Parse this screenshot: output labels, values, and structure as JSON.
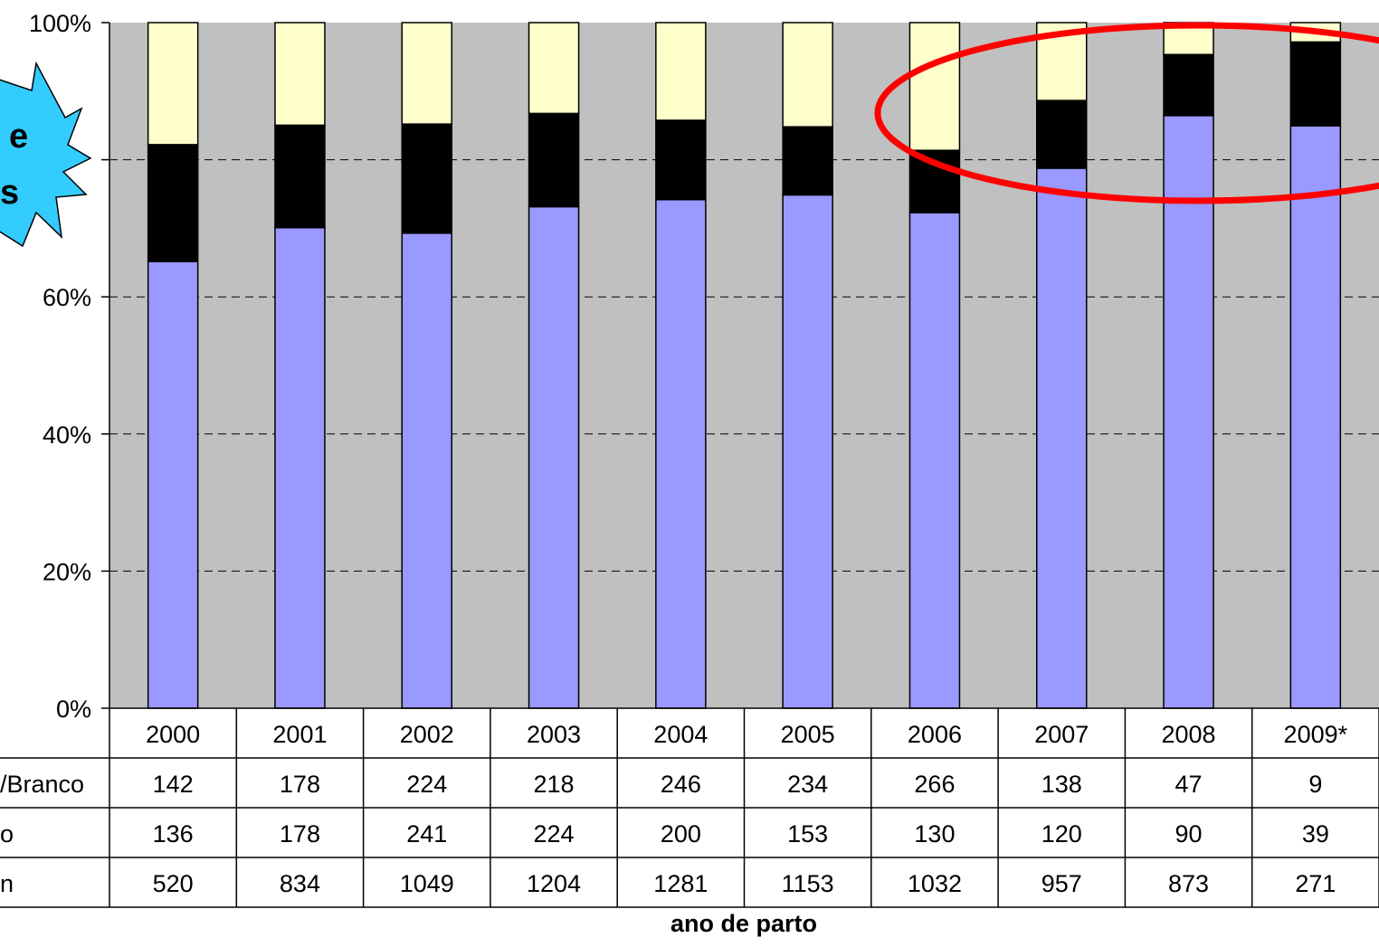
{
  "chart_data": {
    "type": "bar",
    "stacked": true,
    "normalized": true,
    "categories": [
      "2000",
      "2001",
      "2002",
      "2003",
      "2004",
      "2005",
      "2006",
      "2007",
      "2008",
      "2009*"
    ],
    "series": [
      {
        "name": "n",
        "color": "#9999ff",
        "values": [
          520,
          834,
          1049,
          1204,
          1281,
          1153,
          1032,
          957,
          873,
          271
        ]
      },
      {
        "name": "o",
        "color": "#000000",
        "values": [
          136,
          178,
          241,
          224,
          200,
          153,
          130,
          120,
          90,
          39
        ]
      },
      {
        "name": "/Branco",
        "color": "#ffffcc",
        "values": [
          142,
          178,
          224,
          218,
          246,
          234,
          266,
          138,
          47,
          9
        ]
      }
    ],
    "table_rows": [
      {
        "label": "/Branco",
        "values": [
          142,
          178,
          224,
          218,
          246,
          234,
          266,
          138,
          47,
          9
        ]
      },
      {
        "label": "o",
        "values": [
          136,
          178,
          241,
          224,
          200,
          153,
          130,
          120,
          90,
          39
        ]
      },
      {
        "label": "n",
        "values": [
          520,
          834,
          1049,
          1204,
          1281,
          1153,
          1032,
          957,
          873,
          271
        ]
      }
    ],
    "y_ticks": [
      "0%",
      "20%",
      "40%",
      "60%",
      "",
      "100%"
    ],
    "ylim": [
      0,
      100
    ],
    "grid": true,
    "plot_background": "#c0c0c0",
    "xlabel": "ano de parto",
    "ylabel": "",
    "title": "",
    "annotation": {
      "shape": "ellipse",
      "color": "#ff0000",
      "highlights": [
        "2007",
        "2008",
        "2009*"
      ]
    }
  },
  "callout": {
    "lines": [
      "e",
      "s"
    ],
    "fill": "#33ccff"
  }
}
